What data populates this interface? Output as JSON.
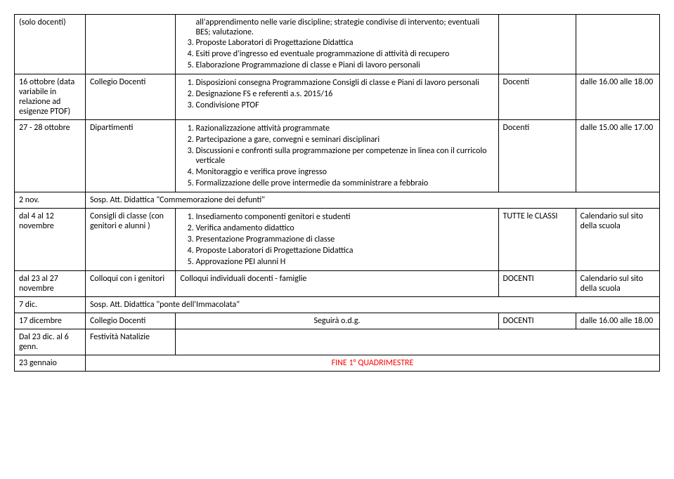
{
  "rows": [
    {
      "c1": "(solo docenti)",
      "c2": "",
      "c3_type": "continuation",
      "c3_intro": "all'apprendimento nelle varie discipline; strategie condivise di intervento; eventuali BES; valutazione.",
      "c3_list": [
        "Proposte Laboratori di Progettazione Didattica",
        "Esiti prove d'ingresso ed eventuale programmazione di attività di recupero",
        "Elaborazione Programmazione di classe e Piani di lavoro personali"
      ],
      "c3_list_start": 3,
      "c4": "",
      "c5": ""
    },
    {
      "c1": "16 ottobre (data variabile in relazione ad esigenze PTOF)",
      "c2": "Collegio Docenti",
      "c3_type": "list",
      "c3_list": [
        "Disposizioni consegna Programmazione Consigli di classe e Piani di lavoro personali",
        "Designazione FS e referenti a.s. 2015/16",
        "Condivisione PTOF"
      ],
      "c4": "Docenti",
      "c5": "dalle 16.00 alle 18.00"
    },
    {
      "c1": "27 - 28 ottobre",
      "c2": "Dipartimenti",
      "c3_type": "list",
      "c3_list": [
        "Razionalizzazione attività programmate",
        "Partecipazione a gare, convegni e seminari disciplinari",
        "Discussioni e confronti sulla programmazione per competenze in linea con il curricolo verticale",
        "Monitoraggio e verifica prove ingresso",
        "Formalizzazione delle prove intermedie da somministrare a febbraio"
      ],
      "c4": "Docenti",
      "c5": "dalle 15.00 alle 17.00"
    },
    {
      "c1": "2 nov.",
      "c2_type": "span",
      "c2": "Sosp. Att. Didattica \"Commemorazione dei defunti\""
    },
    {
      "c1": "dal 4 al 12 novembre",
      "c2": "Consigli di classe (con genitori e alunni )",
      "c3_type": "list",
      "c3_list": [
        "Insediamento componenti genitori e studenti",
        "Verifica andamento didattico",
        "Presentazione Programmazione di classe",
        "Proposte Laboratori di Progettazione Didattica",
        "Approvazione PEI alunni H"
      ],
      "c4": "TUTTE le CLASSI",
      "c5": "Calendario sul sito della scuola"
    },
    {
      "c1": "dal 23 al 27 novembre",
      "c2": "Colloqui con i genitori",
      "c3_type": "plain",
      "c3": "Colloqui individuali docenti - famiglie",
      "c4": "DOCENTI",
      "c5": "Calendario sul sito della scuola"
    },
    {
      "c1": "7 dic.",
      "c2_type": "span",
      "c2": "Sosp. Att. Didattica \"ponte dell'Immacolata\""
    },
    {
      "c1": "17 dicembre",
      "c2": "Collegio Docenti",
      "c3_type": "center",
      "c3": "Seguirà o.d.g.",
      "c4": "DOCENTI",
      "c5": "dalle 16.00 alle 18.00"
    },
    {
      "c1": "Dal 23 dic. al 6 genn.",
      "c2": "Festività Natalizie",
      "c3_type": "empty_no_border"
    },
    {
      "c1": "23 gennaio",
      "c2_type": "span_red",
      "c2": "FINE 1° QUADRIMESTRE"
    }
  ],
  "colors": {
    "border": "#000000",
    "text": "#000000",
    "red": "#ff0000",
    "background": "#ffffff"
  },
  "font": {
    "family": "Calibri",
    "size_pt": 11
  }
}
